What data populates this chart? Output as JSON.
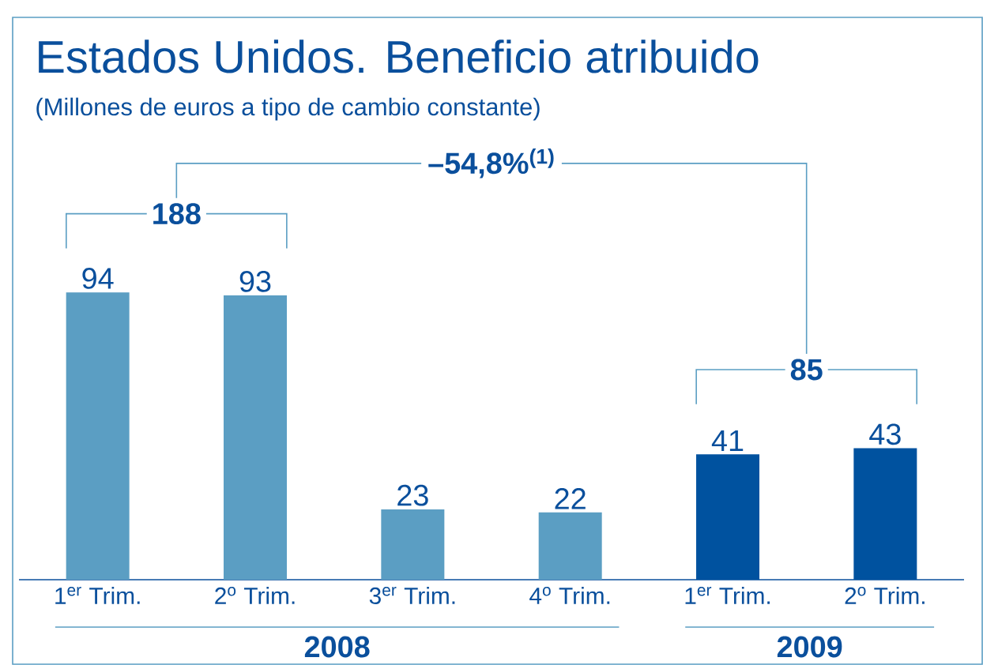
{
  "chart_data": {
    "type": "bar",
    "title": "Estados Unidos. Beneficio atribuido",
    "subtitle": "(Millones de euros a tipo de cambio constante)",
    "categories": [
      "1$^{er}$ Trim.",
      "2$^{o}$ Trim.",
      "3$^{er}$ Trim.",
      "4$^{o}$ Trim.",
      "1$^{er}$ Trim.",
      "2$^{o}$ Trim."
    ],
    "values": [
      94,
      93,
      23,
      22,
      41,
      43
    ],
    "colors": [
      "#5b9ec3",
      "#5b9ec3",
      "#5b9ec3",
      "#5b9ec3",
      "#00529f",
      "#00529f"
    ],
    "data_labels": true,
    "tick_labels": "x",
    "annotations": [
      "188",
      "85",
      "–54,8%$^{(1)}$",
      "2008",
      "2009"
    ]
  }
}
